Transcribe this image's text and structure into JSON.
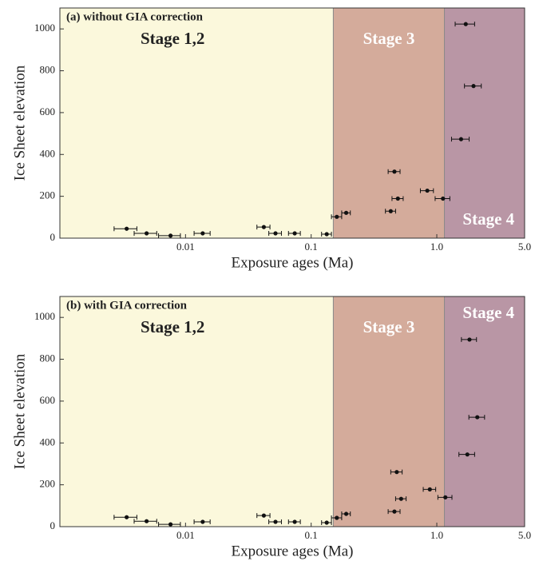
{
  "chart_data": [
    {
      "type": "scatter",
      "title": "(a) without GIA correction",
      "x_label": "Exposure ages (Ma)",
      "y_label": "Ice Sheet elevation",
      "x_scale": "log",
      "xlim": [
        0.001,
        5
      ],
      "ylim": [
        0,
        1100
      ],
      "xticks": [
        0.01,
        0.1,
        {
          "value": 1,
          "label": "1.0"
        },
        {
          "value": 5,
          "label": "5.0"
        }
      ],
      "yticks": [
        0,
        200,
        400,
        600,
        800,
        1000
      ],
      "color": "#111111",
      "stages": [
        {
          "label": "Stage 1,2",
          "range": [
            0.001,
            0.15
          ],
          "color": "#fbf8dc"
        },
        {
          "label": "Stage 3",
          "range": [
            0.15,
            1.15
          ],
          "color": "#d4ab9b"
        },
        {
          "label": "Stage 4",
          "range": [
            1.15,
            5
          ],
          "color": "#b996a5"
        }
      ],
      "x": [
        0.0034,
        0.0049,
        0.0076,
        0.0137,
        0.042,
        0.052,
        0.074,
        0.133,
        0.16,
        0.19,
        0.43,
        0.46,
        0.49,
        0.84,
        1.12,
        1.56,
        1.7,
        1.96
      ],
      "xerr": [
        0.0007,
        0.001,
        0.0015,
        0.002,
        0.005,
        0.006,
        0.008,
        0.012,
        0.015,
        0.015,
        0.04,
        0.05,
        0.05,
        0.1,
        0.15,
        0.25,
        0.3,
        0.3
      ],
      "values": [
        45,
        23,
        12,
        23,
        53,
        23,
        23,
        19,
        102,
        121,
        129,
        318,
        189,
        227,
        189,
        473,
        1023,
        727
      ]
    },
    {
      "type": "scatter",
      "title": "(b) with GIA correction",
      "x_label": "Exposure ages (Ma)",
      "y_label": "Ice Sheet elevation",
      "x_scale": "log",
      "xlim": [
        0.001,
        5
      ],
      "ylim": [
        0,
        1100
      ],
      "xticks": [
        0.01,
        0.1,
        {
          "value": 1,
          "label": "1.0"
        },
        {
          "value": 5,
          "label": "5.0"
        }
      ],
      "yticks": [
        0,
        200,
        400,
        600,
        800,
        1000
      ],
      "color": "#111111",
      "stages": [
        {
          "label": "Stage 1,2",
          "range": [
            0.001,
            0.15
          ],
          "color": "#fbf8dc"
        },
        {
          "label": "Stage 3",
          "range": [
            0.15,
            1.15
          ],
          "color": "#d4ab9b"
        },
        {
          "label": "Stage 4",
          "range": [
            1.15,
            5
          ],
          "color": "#b996a5"
        }
      ],
      "x": [
        0.0034,
        0.0049,
        0.0076,
        0.0137,
        0.042,
        0.052,
        0.074,
        0.133,
        0.16,
        0.19,
        0.46,
        0.48,
        0.52,
        0.88,
        1.17,
        1.75,
        1.82,
        2.1
      ],
      "xerr": [
        0.0007,
        0.001,
        0.0015,
        0.002,
        0.005,
        0.006,
        0.008,
        0.012,
        0.015,
        0.015,
        0.05,
        0.05,
        0.05,
        0.1,
        0.15,
        0.25,
        0.25,
        0.3
      ],
      "values": [
        45,
        26,
        11,
        23,
        53,
        23,
        23,
        19,
        42,
        61,
        72,
        261,
        133,
        178,
        140,
        345,
        894,
        523
      ]
    }
  ]
}
